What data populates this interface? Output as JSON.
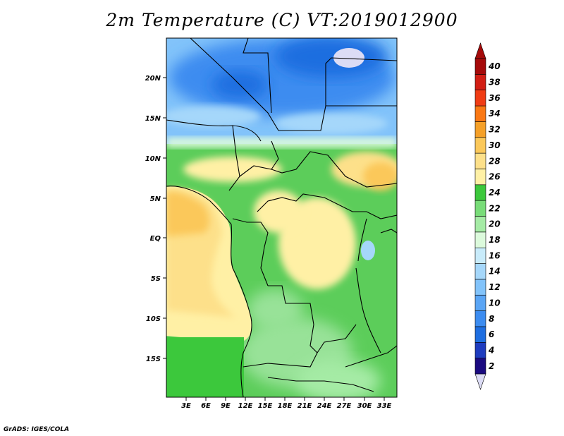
{
  "title": "2m Temperature (C) VT:2019012900",
  "credit": "GrADS: IGES/COLA",
  "map": {
    "lon_ticks": [
      "3E",
      "6E",
      "9E",
      "12E",
      "15E",
      "18E",
      "21E",
      "24E",
      "27E",
      "30E",
      "33E"
    ],
    "lat_ticks": [
      "20N",
      "15N",
      "10N",
      "5N",
      "EQ",
      "5S",
      "10S",
      "15S"
    ]
  },
  "legend": {
    "labels": [
      "2",
      "4",
      "6",
      "8",
      "10",
      "12",
      "14",
      "16",
      "18",
      "20",
      "22",
      "24",
      "26",
      "28",
      "30",
      "32",
      "34",
      "36",
      "38",
      "40"
    ],
    "colors": [
      "#1a0a80",
      "#1e3cbf",
      "#1e6ee0",
      "#3c8cf0",
      "#5aa5f5",
      "#82c3fa",
      "#a5d7fa",
      "#c8ebfa",
      "#dcfadc",
      "#a5eba5",
      "#78dc78",
      "#3cc83c",
      "#fff0a5",
      "#fde08a",
      "#fbc85a",
      "#f5a028",
      "#fa7814",
      "#f03c14",
      "#d21e14",
      "#a50a0a"
    ],
    "below_color": "#dcdcf5",
    "above_color": "#a50a0a"
  }
}
